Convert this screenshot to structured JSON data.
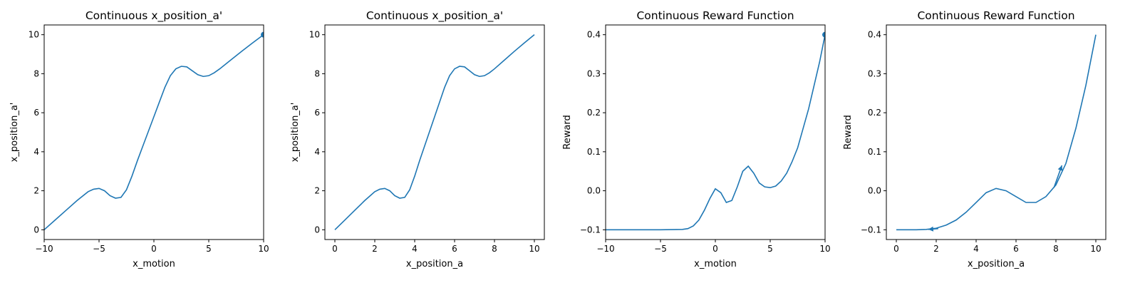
{
  "chart_data": [
    {
      "type": "line",
      "title": "Continuous x_position_a'",
      "xlabel": "x_motion",
      "ylabel": "x_position_a'",
      "xlim": [
        -10,
        10
      ],
      "ylim": [
        -0.5,
        10.5
      ],
      "xticks": [
        -10,
        -5,
        0,
        5,
        10
      ],
      "yticks": [
        0,
        2,
        4,
        6,
        8,
        10
      ],
      "series": [
        {
          "color": "#1f77b4",
          "x": [
            -10,
            -9,
            -8,
            -7,
            -6,
            -5.5,
            -5,
            -4.5,
            -4,
            -3.5,
            -3,
            -2.5,
            -2,
            -1.5,
            -1,
            -0.5,
            0,
            0.5,
            1,
            1.5,
            2,
            2.5,
            3,
            3.5,
            4,
            4.5,
            5,
            5.5,
            6,
            7,
            8,
            9,
            10
          ],
          "y": [
            0,
            0.5,
            1.0,
            1.5,
            1.95,
            2.08,
            2.12,
            2.0,
            1.75,
            1.62,
            1.66,
            2.05,
            2.75,
            3.55,
            4.3,
            5.05,
            5.8,
            6.55,
            7.3,
            7.9,
            8.25,
            8.38,
            8.35,
            8.15,
            7.95,
            7.86,
            7.9,
            8.05,
            8.25,
            8.7,
            9.15,
            9.58,
            10.0
          ]
        }
      ],
      "markers": [
        {
          "x": 10,
          "y": 10
        }
      ]
    },
    {
      "type": "line",
      "title": "Continuous x_position_a'",
      "xlabel": "x_position_a",
      "ylabel": "x_position_a'",
      "xlim": [
        -0.5,
        10.5
      ],
      "ylim": [
        -0.5,
        10.5
      ],
      "xticks": [
        0,
        2,
        4,
        6,
        8,
        10
      ],
      "yticks": [
        0,
        2,
        4,
        6,
        8,
        10
      ],
      "series": [
        {
          "color": "#1f77b4",
          "x": [
            0,
            0.5,
            1,
            1.5,
            2,
            2.25,
            2.5,
            2.75,
            3,
            3.25,
            3.5,
            3.75,
            4,
            4.25,
            4.5,
            4.75,
            5,
            5.25,
            5.5,
            5.75,
            6,
            6.25,
            6.5,
            6.75,
            7,
            7.25,
            7.5,
            7.75,
            8,
            8.5,
            9,
            9.5,
            10
          ],
          "y": [
            0,
            0.5,
            1.0,
            1.5,
            1.95,
            2.08,
            2.12,
            2.0,
            1.75,
            1.62,
            1.66,
            2.05,
            2.75,
            3.55,
            4.3,
            5.05,
            5.8,
            6.55,
            7.3,
            7.9,
            8.25,
            8.38,
            8.35,
            8.15,
            7.95,
            7.86,
            7.9,
            8.05,
            8.25,
            8.7,
            9.15,
            9.58,
            10.0
          ]
        }
      ]
    },
    {
      "type": "line",
      "title": "Continuous Reward Function",
      "xlabel": "x_motion",
      "ylabel": "Reward",
      "xlim": [
        -10,
        10
      ],
      "ylim": [
        -0.125,
        0.425
      ],
      "xticks": [
        -10,
        -5,
        0,
        5,
        10
      ],
      "yticks": [
        -0.1,
        0.0,
        0.1,
        0.2,
        0.3,
        0.4
      ],
      "series": [
        {
          "color": "#1f77b4",
          "x": [
            -10,
            -5,
            -3,
            -2.5,
            -2,
            -1.5,
            -1,
            -0.5,
            0,
            0.5,
            1,
            1.5,
            2,
            2.5,
            3,
            3.5,
            4,
            4.5,
            5,
            5.5,
            6,
            6.5,
            7,
            7.5,
            8,
            8.5,
            9,
            9.5,
            10
          ],
          "y": [
            -0.1,
            -0.1,
            -0.099,
            -0.097,
            -0.09,
            -0.075,
            -0.05,
            -0.02,
            0.005,
            -0.005,
            -0.03,
            -0.025,
            0.01,
            0.05,
            0.063,
            0.045,
            0.02,
            0.01,
            0.008,
            0.012,
            0.025,
            0.045,
            0.075,
            0.11,
            0.16,
            0.21,
            0.27,
            0.33,
            0.4
          ]
        }
      ],
      "markers": [
        {
          "x": 10,
          "y": 0.4
        }
      ]
    },
    {
      "type": "line",
      "title": "Continuous Reward Function",
      "xlabel": "x_position_a",
      "ylabel": "Reward",
      "xlim": [
        -0.5,
        10.5
      ],
      "ylim": [
        -0.125,
        0.425
      ],
      "xticks": [
        0,
        2,
        4,
        6,
        8,
        10
      ],
      "yticks": [
        -0.1,
        0.0,
        0.1,
        0.2,
        0.3,
        0.4
      ],
      "series": [
        {
          "color": "#1f77b4",
          "x": [
            0,
            1,
            1.5,
            2,
            2.5,
            3,
            3.5,
            4,
            4.5,
            5,
            5.5,
            6,
            6.5,
            7,
            7.5,
            8,
            8.5,
            9,
            9.5,
            10
          ],
          "y": [
            -0.1,
            -0.1,
            -0.099,
            -0.096,
            -0.088,
            -0.075,
            -0.055,
            -0.03,
            -0.005,
            0.006,
            0.0,
            -0.015,
            -0.03,
            -0.03,
            -0.015,
            0.015,
            0.07,
            0.16,
            0.27,
            0.4
          ]
        }
      ],
      "arrows": [
        {
          "x1": 2.1,
          "y1": -0.097,
          "x2": 1.6,
          "y2": -0.099
        },
        {
          "x1": 7.9,
          "y1": 0.008,
          "x2": 8.3,
          "y2": 0.065
        }
      ]
    }
  ]
}
